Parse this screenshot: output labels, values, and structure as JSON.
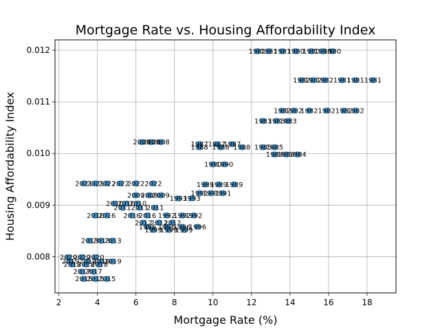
{
  "chart_data": {
    "type": "scatter",
    "title": "Mortgage Rate vs. Housing Affordability Index",
    "xlabel": "Mortgage Rate (%)",
    "ylabel": "Housing Affordability Index",
    "xlim": [
      1.8,
      19.5
    ],
    "ylim": [
      0.0073,
      0.0122
    ],
    "xticks": [
      2,
      4,
      6,
      8,
      10,
      12,
      14,
      16,
      18
    ],
    "yticks": [
      0.008,
      0.009,
      0.01,
      0.011,
      0.012
    ],
    "ytick_labels": [
      "0.008",
      "0.009",
      "0.010",
      "0.011",
      "0.012"
    ],
    "xtick_labels": [
      "2",
      "4",
      "6",
      "8",
      "10",
      "12",
      "14",
      "16",
      "18"
    ],
    "grid": true,
    "marker_color": "#1f77b4",
    "series": [
      {
        "values": [
          {
            "x": 12.3,
            "y": 0.01198,
            "label": "1981"
          },
          {
            "x": 12.9,
            "y": 0.01198,
            "label": "1981"
          },
          {
            "x": 13.6,
            "y": 0.01198,
            "label": "1981"
          },
          {
            "x": 14.3,
            "y": 0.01198,
            "label": "1980"
          },
          {
            "x": 15.1,
            "y": 0.01198,
            "label": "1980"
          },
          {
            "x": 15.7,
            "y": 0.01198,
            "label": "1980"
          },
          {
            "x": 16.2,
            "y": 0.01198,
            "label": "1980"
          },
          {
            "x": 14.6,
            "y": 0.01142,
            "label": "1982"
          },
          {
            "x": 15.2,
            "y": 0.01142,
            "label": "1982"
          },
          {
            "x": 15.8,
            "y": 0.01142,
            "label": "1982"
          },
          {
            "x": 16.7,
            "y": 0.01142,
            "label": "1981"
          },
          {
            "x": 17.4,
            "y": 0.01142,
            "label": "1981"
          },
          {
            "x": 18.3,
            "y": 0.01142,
            "label": "1981"
          },
          {
            "x": 13.6,
            "y": 0.01083,
            "label": "1982"
          },
          {
            "x": 14.2,
            "y": 0.01083,
            "label": "1982"
          },
          {
            "x": 15.0,
            "y": 0.01083,
            "label": "1982"
          },
          {
            "x": 15.9,
            "y": 0.01083,
            "label": "1982"
          },
          {
            "x": 16.8,
            "y": 0.01083,
            "label": "1982"
          },
          {
            "x": 17.4,
            "y": 0.01083,
            "label": "1982"
          },
          {
            "x": 12.6,
            "y": 0.01063,
            "label": "1983"
          },
          {
            "x": 13.3,
            "y": 0.01063,
            "label": "1983"
          },
          {
            "x": 13.9,
            "y": 0.01063,
            "label": "1983"
          },
          {
            "x": 6.3,
            "y": 0.01022,
            "label": "2008"
          },
          {
            "x": 6.8,
            "y": 0.01022,
            "label": "2008"
          },
          {
            "x": 7.3,
            "y": 0.01022,
            "label": "2008"
          },
          {
            "x": 9.3,
            "y": 0.01018,
            "label": "1987"
          },
          {
            "x": 10.2,
            "y": 0.01018,
            "label": "1987"
          },
          {
            "x": 11.0,
            "y": 0.01018,
            "label": "1987"
          },
          {
            "x": 9.3,
            "y": 0.01012,
            "label": "1988"
          },
          {
            "x": 10.4,
            "y": 0.01012,
            "label": "1988"
          },
          {
            "x": 11.5,
            "y": 0.01012,
            "label": "1988"
          },
          {
            "x": 12.6,
            "y": 0.01012,
            "label": "1985"
          },
          {
            "x": 13.2,
            "y": 0.01012,
            "label": "1985"
          },
          {
            "x": 13.2,
            "y": 0.00998,
            "label": "1984"
          },
          {
            "x": 13.8,
            "y": 0.00998,
            "label": "1984"
          },
          {
            "x": 14.4,
            "y": 0.00998,
            "label": "1984"
          },
          {
            "x": 10.0,
            "y": 0.00979,
            "label": "1990"
          },
          {
            "x": 10.6,
            "y": 0.00979,
            "label": "1990"
          },
          {
            "x": 3.3,
            "y": 0.00942,
            "label": "2021"
          },
          {
            "x": 3.9,
            "y": 0.00942,
            "label": "2021"
          },
          {
            "x": 4.5,
            "y": 0.00942,
            "label": "2022"
          },
          {
            "x": 5.2,
            "y": 0.00942,
            "label": "2022"
          },
          {
            "x": 6.0,
            "y": 0.00942,
            "label": "2022"
          },
          {
            "x": 6.9,
            "y": 0.00942,
            "label": "2022"
          },
          {
            "x": 9.6,
            "y": 0.0094,
            "label": "1989"
          },
          {
            "x": 10.3,
            "y": 0.0094,
            "label": "1989"
          },
          {
            "x": 11.1,
            "y": 0.0094,
            "label": "1989"
          },
          {
            "x": 9.3,
            "y": 0.00923,
            "label": "1991"
          },
          {
            "x": 9.9,
            "y": 0.00923,
            "label": "1991"
          },
          {
            "x": 10.5,
            "y": 0.00923,
            "label": "1991"
          },
          {
            "x": 6.0,
            "y": 0.00919,
            "label": "2009"
          },
          {
            "x": 6.7,
            "y": 0.00919,
            "label": "2009"
          },
          {
            "x": 7.3,
            "y": 0.00919,
            "label": "2009"
          },
          {
            "x": 8.2,
            "y": 0.00913,
            "label": "1993"
          },
          {
            "x": 8.9,
            "y": 0.00913,
            "label": "1993"
          },
          {
            "x": 4.9,
            "y": 0.00903,
            "label": "2010"
          },
          {
            "x": 5.5,
            "y": 0.00903,
            "label": "2010"
          },
          {
            "x": 6.1,
            "y": 0.00903,
            "label": "2010"
          },
          {
            "x": 5.3,
            "y": 0.00895,
            "label": "2011"
          },
          {
            "x": 6.2,
            "y": 0.00895,
            "label": "2011"
          },
          {
            "x": 7.0,
            "y": 0.00895,
            "label": "2011"
          },
          {
            "x": 3.9,
            "y": 0.0088,
            "label": "2016"
          },
          {
            "x": 4.5,
            "y": 0.0088,
            "label": "2016"
          },
          {
            "x": 5.8,
            "y": 0.0088,
            "label": "2016"
          },
          {
            "x": 6.6,
            "y": 0.0088,
            "label": "2016"
          },
          {
            "x": 7.6,
            "y": 0.0088,
            "label": "1992"
          },
          {
            "x": 8.4,
            "y": 0.0088,
            "label": "1992"
          },
          {
            "x": 9.0,
            "y": 0.0088,
            "label": "1992"
          },
          {
            "x": 6.4,
            "y": 0.00866,
            "label": "2012"
          },
          {
            "x": 7.2,
            "y": 0.00866,
            "label": "2012"
          },
          {
            "x": 7.9,
            "y": 0.00866,
            "label": "2012"
          },
          {
            "x": 6.6,
            "y": 0.00858,
            "label": "1996"
          },
          {
            "x": 7.6,
            "y": 0.00858,
            "label": "1996"
          },
          {
            "x": 8.4,
            "y": 0.00858,
            "label": "1996"
          },
          {
            "x": 9.2,
            "y": 0.00858,
            "label": "1996"
          },
          {
            "x": 6.9,
            "y": 0.00852,
            "label": "1999"
          },
          {
            "x": 7.7,
            "y": 0.00852,
            "label": "1999"
          },
          {
            "x": 8.5,
            "y": 0.00852,
            "label": "1999"
          },
          {
            "x": 3.6,
            "y": 0.00831,
            "label": "2013"
          },
          {
            "x": 4.2,
            "y": 0.00831,
            "label": "2013"
          },
          {
            "x": 4.8,
            "y": 0.00831,
            "label": "2013"
          },
          {
            "x": 2.5,
            "y": 0.00799,
            "label": "2020"
          },
          {
            "x": 3.2,
            "y": 0.00799,
            "label": "2020"
          },
          {
            "x": 3.9,
            "y": 0.00799,
            "label": "2020"
          },
          {
            "x": 2.6,
            "y": 0.00791,
            "label": "2019"
          },
          {
            "x": 3.5,
            "y": 0.00791,
            "label": "2019"
          },
          {
            "x": 4.2,
            "y": 0.00791,
            "label": "2019"
          },
          {
            "x": 4.8,
            "y": 0.00791,
            "label": "2019"
          },
          {
            "x": 2.7,
            "y": 0.00785,
            "label": "2018"
          },
          {
            "x": 3.4,
            "y": 0.00785,
            "label": "2018"
          },
          {
            "x": 4.1,
            "y": 0.00785,
            "label": "2018"
          },
          {
            "x": 3.2,
            "y": 0.00771,
            "label": "2017"
          },
          {
            "x": 3.8,
            "y": 0.00771,
            "label": "2017"
          },
          {
            "x": 3.3,
            "y": 0.00757,
            "label": "2015"
          },
          {
            "x": 3.9,
            "y": 0.00757,
            "label": "2015"
          },
          {
            "x": 4.5,
            "y": 0.00757,
            "label": "2015"
          }
        ]
      }
    ]
  }
}
